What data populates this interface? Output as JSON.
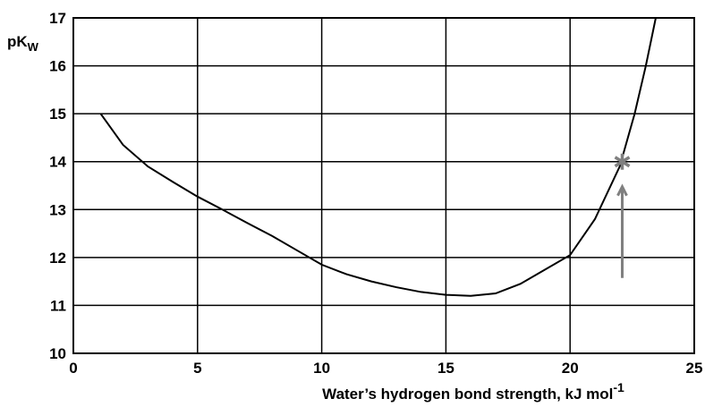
{
  "chart_data": {
    "type": "line",
    "y_label": "pK",
    "y_label_sub": "W",
    "x_label": "Water’s hydrogen bond strength, kJ mol",
    "x_label_sup": "-1",
    "series": [
      {
        "color": "#000000",
        "x": [
          1.1,
          2,
          3,
          4,
          5,
          6,
          7,
          8,
          9,
          10,
          11,
          12,
          13,
          14,
          15,
          16,
          17,
          18,
          19,
          20,
          21,
          22,
          22.6,
          23.05,
          23.45
        ],
        "values": [
          15.0,
          14.35,
          13.9,
          13.58,
          13.27,
          13.0,
          12.72,
          12.45,
          12.15,
          11.85,
          11.65,
          11.5,
          11.38,
          11.28,
          11.22,
          11.2,
          11.25,
          11.45,
          11.75,
          12.05,
          12.8,
          13.9,
          15.0,
          16.0,
          17.0
        ]
      }
    ],
    "highlight": {
      "x": 22.1,
      "y": 14,
      "color": "#808080"
    },
    "xlim": [
      0,
      25
    ],
    "xticks": [
      0,
      5,
      10,
      15,
      20,
      25
    ],
    "ylim": [
      10,
      17
    ],
    "yticks": [
      10,
      11,
      12,
      13,
      14,
      15,
      16,
      17
    ],
    "grid": true
  }
}
